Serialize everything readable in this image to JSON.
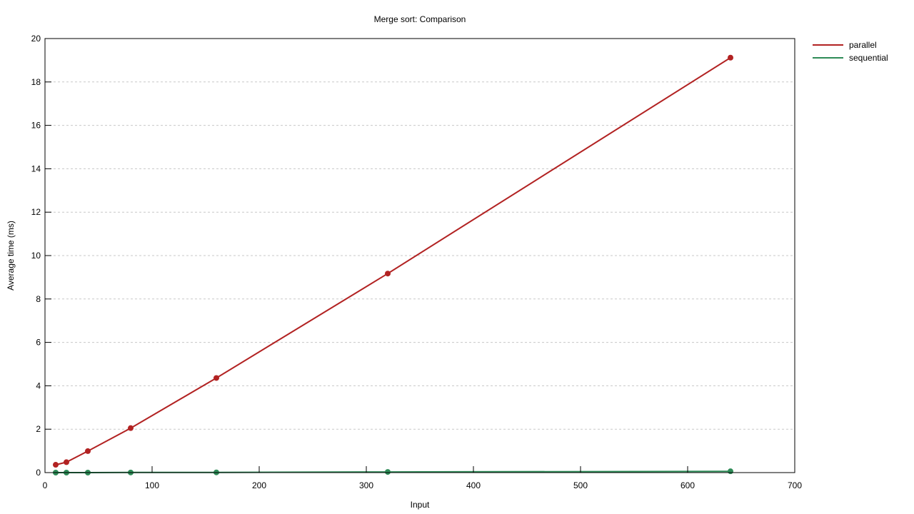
{
  "chart_data": {
    "type": "line",
    "title": "Merge sort: Comparison",
    "xlabel": "Input",
    "ylabel": "Average time (ms)",
    "xlim": [
      0,
      700
    ],
    "ylim": [
      0,
      20
    ],
    "x_ticks": [
      0,
      100,
      200,
      300,
      400,
      500,
      600,
      700
    ],
    "y_ticks": [
      0,
      2,
      4,
      6,
      8,
      10,
      12,
      14,
      16,
      18,
      20
    ],
    "grid": "horizontal dashed",
    "legend_position": "outside top-right",
    "series": [
      {
        "name": "parallel",
        "color": "#b22222",
        "x": [
          10,
          20,
          40,
          80,
          160,
          320,
          640
        ],
        "y": [
          0.36,
          0.48,
          0.99,
          2.05,
          4.36,
          9.17,
          19.12
        ]
      },
      {
        "name": "sequential",
        "color": "#2e8b57",
        "x": [
          10,
          20,
          40,
          80,
          160,
          320,
          640
        ],
        "y": [
          0.0,
          0.0,
          0.0,
          0.005,
          0.01,
          0.03,
          0.06
        ]
      }
    ]
  }
}
